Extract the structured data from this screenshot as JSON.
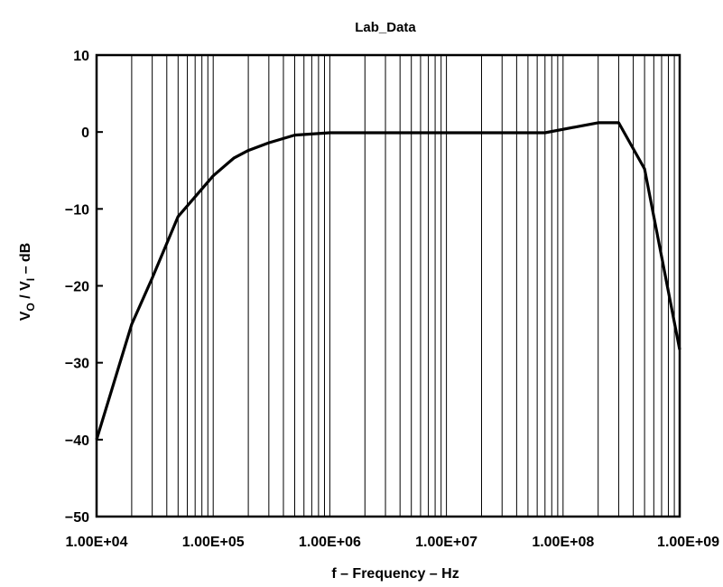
{
  "chart_data": {
    "type": "line",
    "title": "Lab_Data",
    "xlabel": "f – Frequency – Hz",
    "ylabel": {
      "v": "V",
      "o": "O",
      "slash": " / V",
      "i": "I",
      "rest": " – dB"
    },
    "x_scale": "log",
    "xlim": [
      10000,
      1000000000
    ],
    "ylim": [
      -50,
      10
    ],
    "x_ticks": [
      {
        "value": 10000,
        "label": "1.00E+04"
      },
      {
        "value": 100000,
        "label": "1.00E+05"
      },
      {
        "value": 1000000,
        "label": "1.00E+06"
      },
      {
        "value": 10000000,
        "label": "1.00E+07"
      },
      {
        "value": 100000000,
        "label": "1.00E+08"
      },
      {
        "value": 1000000000,
        "label": "1.00E+09"
      }
    ],
    "y_ticks": [
      {
        "value": 10,
        "label": "10"
      },
      {
        "value": 0,
        "label": "0"
      },
      {
        "value": -10,
        "label": "−10"
      },
      {
        "value": -20,
        "label": "−20"
      },
      {
        "value": -30,
        "label": "−30"
      },
      {
        "value": -40,
        "label": "−40"
      },
      {
        "value": -50,
        "label": "−50"
      }
    ],
    "grid": "vertical log decade lines",
    "series": [
      {
        "color": "#000000",
        "points": [
          {
            "x": 10000,
            "y": -40
          },
          {
            "x": 20000,
            "y": -25
          },
          {
            "x": 30000,
            "y": -19
          },
          {
            "x": 50000,
            "y": -11
          },
          {
            "x": 100000,
            "y": -5.7
          },
          {
            "x": 150000,
            "y": -3.4
          },
          {
            "x": 200000,
            "y": -2.4
          },
          {
            "x": 300000,
            "y": -1.4
          },
          {
            "x": 500000,
            "y": -0.4
          },
          {
            "x": 1000000,
            "y": -0.1
          },
          {
            "x": 10000000,
            "y": -0.1
          },
          {
            "x": 70000000,
            "y": -0.1
          },
          {
            "x": 200000000,
            "y": 1.2
          },
          {
            "x": 300000000,
            "y": 1.2
          },
          {
            "x": 500000000,
            "y": -4.8
          },
          {
            "x": 1000000000,
            "y": -28.3
          }
        ]
      }
    ]
  }
}
